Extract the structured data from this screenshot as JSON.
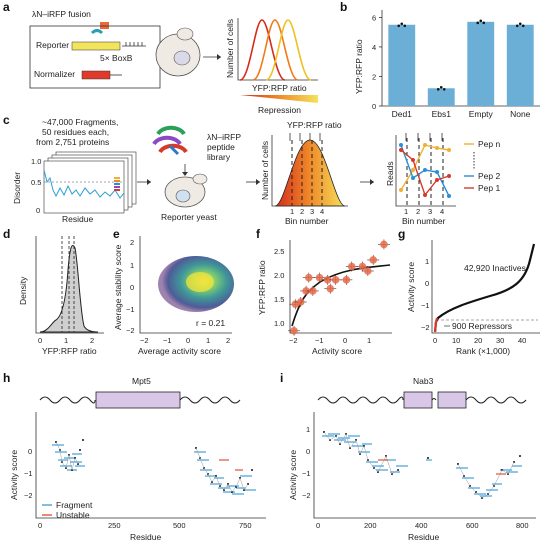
{
  "panels": {
    "a": {
      "label": "a",
      "fusion_label": "λN–iRFP fusion",
      "reporter_label": "Reporter",
      "boxb_label": "5× BoxB",
      "normalizer_label": "Normalizer",
      "ylabel": "Number of cells",
      "xlabel": "YFP:RFP ratio",
      "repression_label": "Repression"
    },
    "b": {
      "label": "b",
      "ylabel": "YFP:RFP ratio",
      "yticks": [
        "0",
        "2",
        "4",
        "6"
      ]
    },
    "c": {
      "label": "c",
      "fragments_text": [
        "~47,000 Fragments,",
        "50 residues each,",
        "from 2,751 proteins"
      ],
      "disorder_label": "Disorder",
      "disorder_ticks": [
        "1.0",
        "0.5",
        "0"
      ],
      "residue_label": "Residue",
      "library_text": [
        "λN–iRFP",
        "peptide",
        "library"
      ],
      "reporter_yeast": "Reporter yeast",
      "ratio_label": "YFP:RFP ratio",
      "cells_label": "Number of cells",
      "bin_label": "Bin number",
      "bins": [
        "1",
        "2",
        "3",
        "4"
      ],
      "reads_label": "Reads",
      "pep_n": "Pep n",
      "pep_2": "Pep 2",
      "pep_1": "Pep 1"
    },
    "d": {
      "label": "d",
      "ylabel": "Density",
      "xlabel": "YFP:RFP ratio",
      "xticks": [
        "0",
        "1",
        "2"
      ]
    },
    "e": {
      "label": "e",
      "ylabel": "Average stability score",
      "xlabel": "Average activity score",
      "xticks": [
        "−2",
        "−1",
        "0",
        "1",
        "2"
      ],
      "yticks": [
        "2",
        "1",
        "0",
        "−1",
        "−2"
      ],
      "r_text": "r = 0.21"
    },
    "f": {
      "label": "f",
      "ylabel": "YFP:RFP ratio",
      "xlabel": "Activity score",
      "xticks": [
        "−2",
        "−1",
        "0",
        "1"
      ],
      "yticks": [
        "2.5",
        "2.0",
        "1.5",
        "1.0"
      ]
    },
    "g": {
      "label": "g",
      "ylabel": "Activity score",
      "xlabel": "Rank (×1,000)",
      "xticks": [
        "0",
        "10",
        "20",
        "30",
        "40"
      ],
      "yticks": [
        "1",
        "0",
        "−1",
        "−2"
      ],
      "inactives": "42,920 Inactives",
      "repressors": "900 Repressors"
    },
    "h": {
      "label": "h",
      "protein": "Mpt5",
      "ylabel": "Activity score",
      "xlabel": "Residue",
      "xticks": [
        "0",
        "250",
        "500",
        "750"
      ],
      "yticks": [
        "0",
        "−1",
        "−2"
      ],
      "legend_fragment": "Fragment",
      "legend_unstable": "Unstable"
    },
    "i": {
      "label": "i",
      "protein": "Nab3",
      "ylabel": "Activity score",
      "xlabel": "Residue",
      "xticks": [
        "0",
        "200",
        "400",
        "600",
        "800"
      ],
      "yticks": [
        "1",
        "0",
        "−1",
        "−2"
      ]
    }
  },
  "chart_data": [
    {
      "type": "bar",
      "panel": "b",
      "categories": [
        "Ded1",
        "Ebs1",
        "Empty",
        "None"
      ],
      "values": [
        5.5,
        1.2,
        5.7,
        5.5
      ],
      "ylabel": "YFP:RFP ratio",
      "ylim": [
        0,
        6.5
      ],
      "color": "#6baed6"
    },
    {
      "type": "scatter",
      "panel": "f",
      "xlabel": "Activity score",
      "ylabel": "YFP:RFP ratio",
      "points": [
        {
          "x": -1.85,
          "y": 0.85
        },
        {
          "x": -1.8,
          "y": 1.45
        },
        {
          "x": -1.6,
          "y": 1.5
        },
        {
          "x": -1.4,
          "y": 1.75
        },
        {
          "x": -1.3,
          "y": 2.05
        },
        {
          "x": -1.15,
          "y": 1.75
        },
        {
          "x": -0.9,
          "y": 2.05
        },
        {
          "x": -0.6,
          "y": 2.0
        },
        {
          "x": -0.5,
          "y": 1.8
        },
        {
          "x": -0.3,
          "y": 2.0
        },
        {
          "x": 0.1,
          "y": 2.0
        },
        {
          "x": 0.3,
          "y": 2.3
        },
        {
          "x": 0.7,
          "y": 2.3
        },
        {
          "x": 0.9,
          "y": 2.2
        },
        {
          "x": 1.1,
          "y": 2.45
        },
        {
          "x": 1.5,
          "y": 2.8
        }
      ]
    }
  ],
  "colors": {
    "bar": "#6baed6",
    "unstable": "#e6553a",
    "fragment": "#4aa3d9",
    "domain": "#d9c7e8",
    "pep_n": "#f0b030",
    "pep_2": "#2b8fd6",
    "pep_1": "#d63a2b"
  }
}
